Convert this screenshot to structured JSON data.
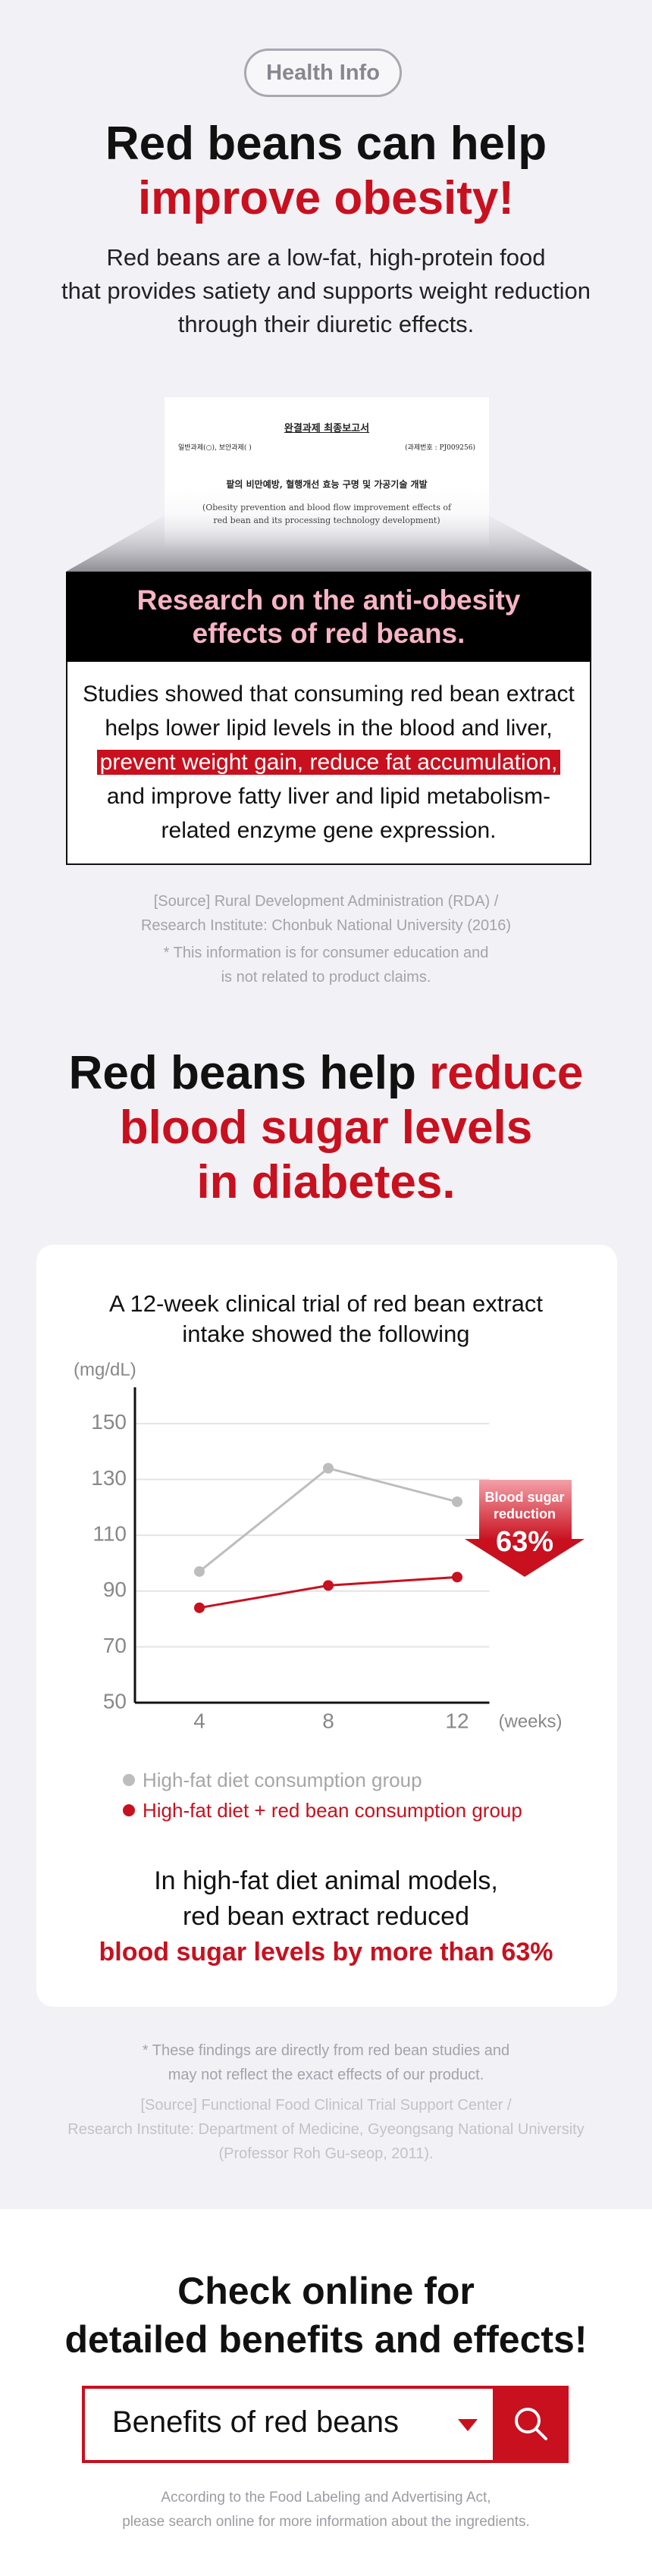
{
  "header": {
    "badge": "Health Info",
    "title": [
      "Red beans can help",
      "improve obesity!"
    ],
    "description": [
      "Red beans are a low-fat, high-protein food",
      "that provides satiety and supports weight reduction",
      "through their diuretic effects."
    ]
  },
  "document": {
    "title": "완결과제 최종보고서",
    "meta_left": "일반과제(○), 보안과제( )",
    "meta_right": "(과제번호 : PJ009256)",
    "subject": "팥의 비만예방, 혈행개선 효능 구명 및 가공기술 개발",
    "subject_en": [
      "(Obesity prevention and blood flow improvement effects of",
      "red bean and its processing technology development)"
    ]
  },
  "research": {
    "title": [
      "Research on the anti-obesity",
      "effects of red beans."
    ],
    "body": [
      "Studies showed that consuming red bean extract helps lower lipid levels in the blood and liver, ",
      "prevent weight gain, reduce fat accumulation,",
      " and improve fatty liver and lipid metabolism-related enzyme gene expression."
    ],
    "source": [
      "[Source] Rural Development Administration (RDA) /",
      "Research Institute: Chonbuk National University (2016)"
    ],
    "note": [
      "* This information is for consumer education and",
      "is not related to product claims."
    ]
  },
  "diabetes": {
    "title": [
      "Red beans help ",
      "reduce",
      "blood sugar levels",
      "in diabetes."
    ],
    "conclusion": [
      "In high-fat diet animal models,",
      "red bean extract reduced",
      "blood sugar levels by more than 63%"
    ],
    "note": [
      "* These findings are directly from red bean studies and",
      "may not reflect the exact effects of our product."
    ],
    "source": [
      "[Source] Functional Food Clinical Trial Support Center /",
      "Research Institute: Department of Medicine, Gyeongsang National University",
      "(Professor Roh Gu-seop, 2011)."
    ]
  },
  "chart_data": {
    "type": "line",
    "title": [
      "A 12-week clinical trial of red bean extract",
      "intake showed the following"
    ],
    "y_label": "(mg/dL)",
    "x_label": "(weeks)",
    "x": [
      4,
      8,
      12
    ],
    "xlim": [
      2,
      13
    ],
    "xticks": [
      4,
      8,
      12
    ],
    "ylim": [
      50,
      163
    ],
    "yticks": [
      50,
      70,
      90,
      110,
      130,
      150
    ],
    "grid": true,
    "series": [
      {
        "name": "High-fat diet consumption group",
        "color": "#bdbdbd",
        "values": [
          97,
          134,
          122
        ]
      },
      {
        "name": "High-fat diet + red bean consumption group",
        "color": "#c8101e",
        "values": [
          84,
          92,
          95
        ]
      }
    ],
    "annotation": [
      "Blood sugar",
      "reduction"
    ],
    "annotation_value": "63%"
  },
  "cta": {
    "title": [
      "Check online for",
      "detailed benefits and effects!"
    ],
    "search_text": "Benefits of red beans",
    "footer": [
      "According to the Food Labeling and Advertising Act,",
      "please search online for more information about the ingredients."
    ]
  }
}
